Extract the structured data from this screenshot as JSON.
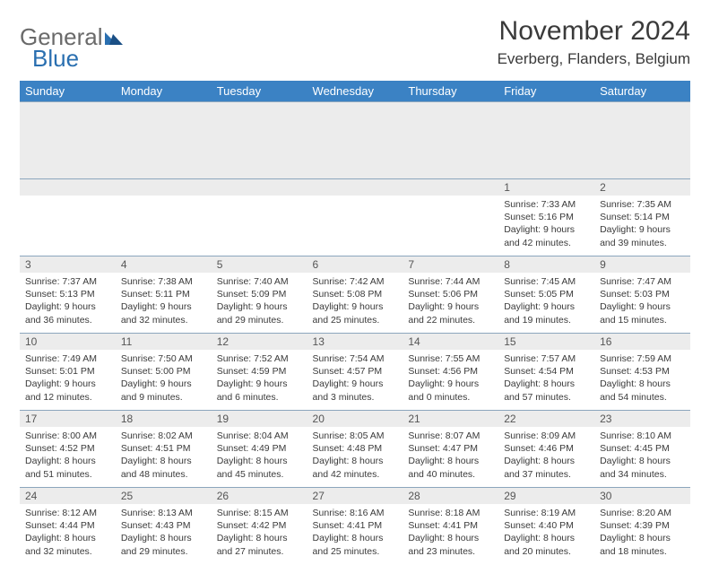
{
  "logo": {
    "text1": "General",
    "text2": "Blue"
  },
  "title": {
    "month": "November 2024",
    "location": "Everberg, Flanders, Belgium"
  },
  "colors": {
    "header_bg": "#3b82c4",
    "header_text": "#ffffff",
    "daynum_bg": "#ececec",
    "daynum_text": "#555555",
    "body_text": "#3a3a3a",
    "border": "#8ca6bd",
    "logo_gray": "#6a6a6a",
    "logo_blue": "#2a6fb0"
  },
  "typography": {
    "title_fontsize": 30,
    "location_fontsize": 17,
    "dayheader_fontsize": 13,
    "daynum_fontsize": 12,
    "body_fontsize": 10.5
  },
  "day_headers": [
    "Sunday",
    "Monday",
    "Tuesday",
    "Wednesday",
    "Thursday",
    "Friday",
    "Saturday"
  ],
  "weeks": [
    [
      null,
      null,
      null,
      null,
      null,
      {
        "n": "1",
        "sunrise": "7:33 AM",
        "sunset": "5:16 PM",
        "dl1": "9 hours",
        "dl2": "and 42 minutes."
      },
      {
        "n": "2",
        "sunrise": "7:35 AM",
        "sunset": "5:14 PM",
        "dl1": "9 hours",
        "dl2": "and 39 minutes."
      }
    ],
    [
      {
        "n": "3",
        "sunrise": "7:37 AM",
        "sunset": "5:13 PM",
        "dl1": "9 hours",
        "dl2": "and 36 minutes."
      },
      {
        "n": "4",
        "sunrise": "7:38 AM",
        "sunset": "5:11 PM",
        "dl1": "9 hours",
        "dl2": "and 32 minutes."
      },
      {
        "n": "5",
        "sunrise": "7:40 AM",
        "sunset": "5:09 PM",
        "dl1": "9 hours",
        "dl2": "and 29 minutes."
      },
      {
        "n": "6",
        "sunrise": "7:42 AM",
        "sunset": "5:08 PM",
        "dl1": "9 hours",
        "dl2": "and 25 minutes."
      },
      {
        "n": "7",
        "sunrise": "7:44 AM",
        "sunset": "5:06 PM",
        "dl1": "9 hours",
        "dl2": "and 22 minutes."
      },
      {
        "n": "8",
        "sunrise": "7:45 AM",
        "sunset": "5:05 PM",
        "dl1": "9 hours",
        "dl2": "and 19 minutes."
      },
      {
        "n": "9",
        "sunrise": "7:47 AM",
        "sunset": "5:03 PM",
        "dl1": "9 hours",
        "dl2": "and 15 minutes."
      }
    ],
    [
      {
        "n": "10",
        "sunrise": "7:49 AM",
        "sunset": "5:01 PM",
        "dl1": "9 hours",
        "dl2": "and 12 minutes."
      },
      {
        "n": "11",
        "sunrise": "7:50 AM",
        "sunset": "5:00 PM",
        "dl1": "9 hours",
        "dl2": "and 9 minutes."
      },
      {
        "n": "12",
        "sunrise": "7:52 AM",
        "sunset": "4:59 PM",
        "dl1": "9 hours",
        "dl2": "and 6 minutes."
      },
      {
        "n": "13",
        "sunrise": "7:54 AM",
        "sunset": "4:57 PM",
        "dl1": "9 hours",
        "dl2": "and 3 minutes."
      },
      {
        "n": "14",
        "sunrise": "7:55 AM",
        "sunset": "4:56 PM",
        "dl1": "9 hours",
        "dl2": "and 0 minutes."
      },
      {
        "n": "15",
        "sunrise": "7:57 AM",
        "sunset": "4:54 PM",
        "dl1": "8 hours",
        "dl2": "and 57 minutes."
      },
      {
        "n": "16",
        "sunrise": "7:59 AM",
        "sunset": "4:53 PM",
        "dl1": "8 hours",
        "dl2": "and 54 minutes."
      }
    ],
    [
      {
        "n": "17",
        "sunrise": "8:00 AM",
        "sunset": "4:52 PM",
        "dl1": "8 hours",
        "dl2": "and 51 minutes."
      },
      {
        "n": "18",
        "sunrise": "8:02 AM",
        "sunset": "4:51 PM",
        "dl1": "8 hours",
        "dl2": "and 48 minutes."
      },
      {
        "n": "19",
        "sunrise": "8:04 AM",
        "sunset": "4:49 PM",
        "dl1": "8 hours",
        "dl2": "and 45 minutes."
      },
      {
        "n": "20",
        "sunrise": "8:05 AM",
        "sunset": "4:48 PM",
        "dl1": "8 hours",
        "dl2": "and 42 minutes."
      },
      {
        "n": "21",
        "sunrise": "8:07 AM",
        "sunset": "4:47 PM",
        "dl1": "8 hours",
        "dl2": "and 40 minutes."
      },
      {
        "n": "22",
        "sunrise": "8:09 AM",
        "sunset": "4:46 PM",
        "dl1": "8 hours",
        "dl2": "and 37 minutes."
      },
      {
        "n": "23",
        "sunrise": "8:10 AM",
        "sunset": "4:45 PM",
        "dl1": "8 hours",
        "dl2": "and 34 minutes."
      }
    ],
    [
      {
        "n": "24",
        "sunrise": "8:12 AM",
        "sunset": "4:44 PM",
        "dl1": "8 hours",
        "dl2": "and 32 minutes."
      },
      {
        "n": "25",
        "sunrise": "8:13 AM",
        "sunset": "4:43 PM",
        "dl1": "8 hours",
        "dl2": "and 29 minutes."
      },
      {
        "n": "26",
        "sunrise": "8:15 AM",
        "sunset": "4:42 PM",
        "dl1": "8 hours",
        "dl2": "and 27 minutes."
      },
      {
        "n": "27",
        "sunrise": "8:16 AM",
        "sunset": "4:41 PM",
        "dl1": "8 hours",
        "dl2": "and 25 minutes."
      },
      {
        "n": "28",
        "sunrise": "8:18 AM",
        "sunset": "4:41 PM",
        "dl1": "8 hours",
        "dl2": "and 23 minutes."
      },
      {
        "n": "29",
        "sunrise": "8:19 AM",
        "sunset": "4:40 PM",
        "dl1": "8 hours",
        "dl2": "and 20 minutes."
      },
      {
        "n": "30",
        "sunrise": "8:20 AM",
        "sunset": "4:39 PM",
        "dl1": "8 hours",
        "dl2": "and 18 minutes."
      }
    ]
  ],
  "labels": {
    "sunrise": "Sunrise:",
    "sunset": "Sunset:",
    "daylight": "Daylight:"
  }
}
